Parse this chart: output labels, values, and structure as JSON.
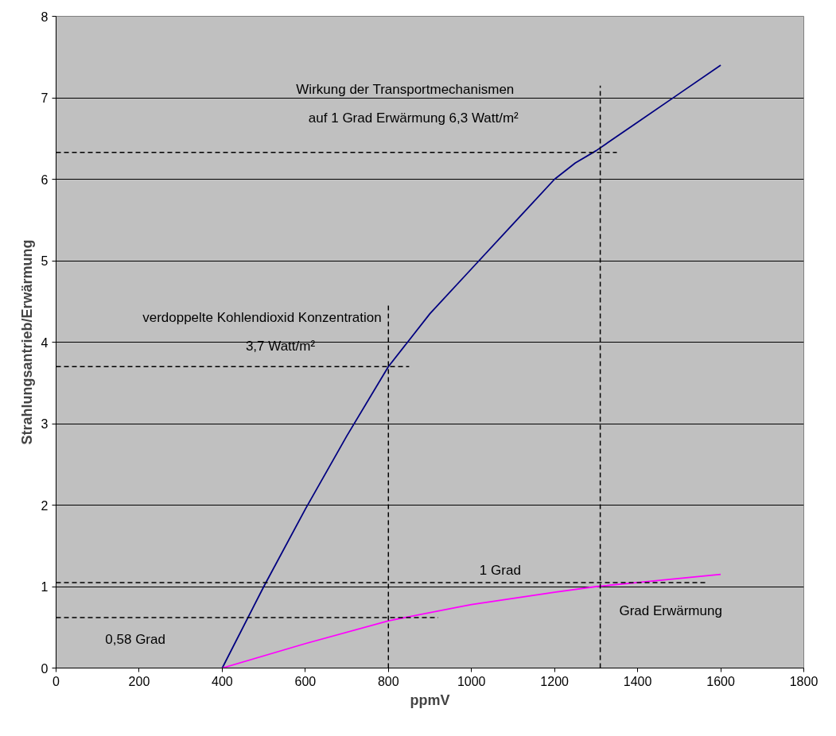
{
  "chart_data": {
    "type": "line",
    "xlabel": "ppmV",
    "ylabel": "Strahlungsantrieb/Erwärmung",
    "xlim": [
      0,
      1800
    ],
    "xticks": [
      0,
      200,
      400,
      600,
      800,
      1000,
      1200,
      1400,
      1600,
      1800
    ],
    "ylim": [
      0,
      8
    ],
    "yticks": [
      0,
      1,
      2,
      3,
      4,
      5,
      6,
      7,
      8
    ],
    "grid": "y",
    "marker": "none",
    "series": [
      {
        "color": "#000080",
        "x": [
          400,
          500,
          600,
          700,
          800,
          900,
          1000,
          1100,
          1200,
          1250,
          1300,
          1400,
          1500,
          1600
        ],
        "values": [
          0,
          1,
          1.95,
          2.85,
          3.7,
          4.35,
          4.9,
          5.45,
          6.0,
          6.2,
          6.35,
          6.7,
          7.05,
          7.4
        ]
      },
      {
        "color": "#ff00ff",
        "x": [
          400,
          600,
          800,
          1000,
          1200,
          1300,
          1400,
          1600
        ],
        "values": [
          0,
          0.3,
          0.58,
          0.78,
          0.93,
          1.0,
          1.05,
          1.15
        ]
      },
      {
        "color": "#000000",
        "line_style": "dashed",
        "x": [
          0,
          1350
        ],
        "values": [
          6.33,
          6.33
        ]
      },
      {
        "color": "#000000",
        "line_style": "dashed",
        "x": [
          1310,
          1310
        ],
        "values": [
          0,
          7.15
        ]
      },
      {
        "color": "#000000",
        "line_style": "dashed",
        "x": [
          0,
          850
        ],
        "values": [
          3.7,
          3.7
        ]
      },
      {
        "color": "#000000",
        "line_style": "dashed",
        "x": [
          800,
          800
        ],
        "values": [
          0,
          4.45
        ]
      },
      {
        "color": "#000000",
        "line_style": "dashed",
        "x": [
          0,
          1570
        ],
        "values": [
          1.05,
          1.05
        ]
      },
      {
        "color": "#000000",
        "line_style": "dashed",
        "x": [
          0,
          920
        ],
        "values": [
          0.62,
          0.62
        ]
      }
    ],
    "annotations": [
      "Wirkung der Transportmechanismen",
      "auf 1 Grad Erwärmung 6,3 Watt/m²",
      "verdoppelte  Kohlendioxid Konzentration",
      "3,7 Watt/m²",
      "1 Grad",
      "Grad Erwärmung",
      "0,58 Grad"
    ]
  }
}
